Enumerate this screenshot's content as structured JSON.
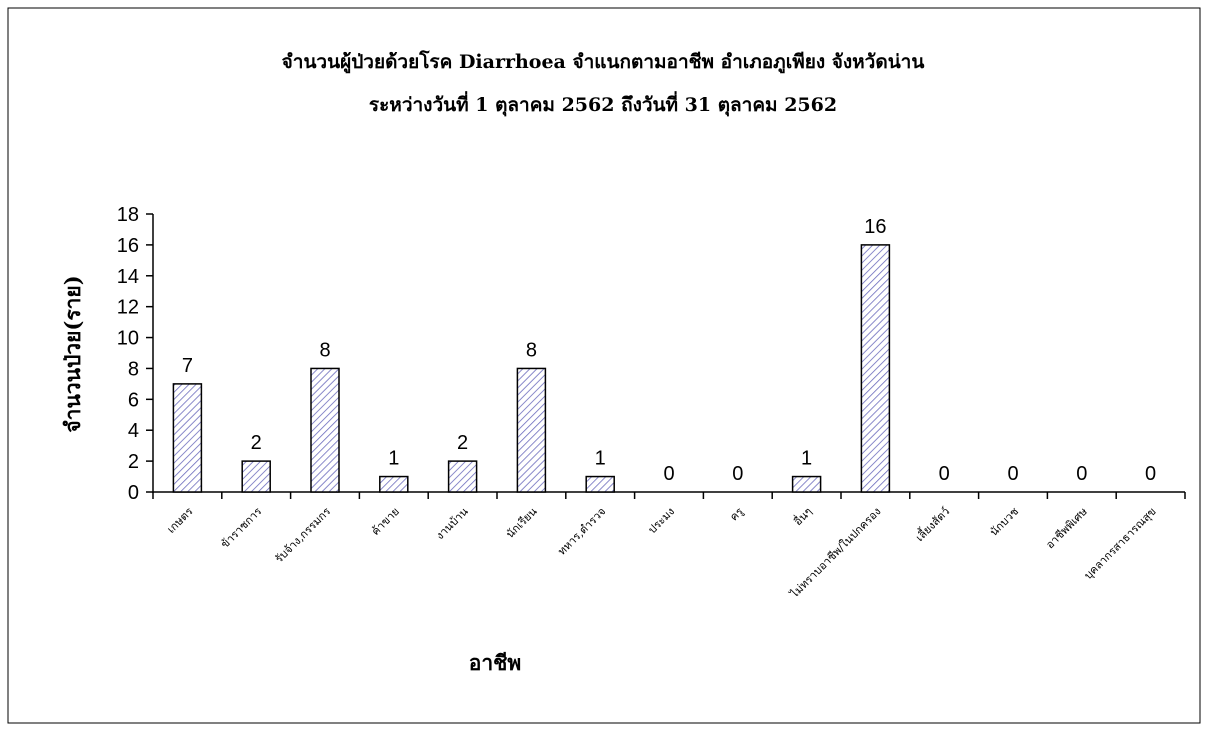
{
  "chart_data": {
    "type": "bar",
    "title": "จำนวนผู้ป่วยด้วยโรค Diarrhoea จำแนกตามอาชีพ    อำเภอภูเพียง จังหวัดน่าน",
    "subtitle": "ระหว่างวันที่  1 ตุลาคม 2562  ถึงวันที่  31 ตุลาคม 2562",
    "xlabel": "อาชีพ",
    "ylabel": "จำนวนป่วย(ราย)",
    "categories": [
      "เกษตร",
      "ข้าราชการ",
      "รับจ้าง,กรรมกร",
      "ค้าขาย",
      "งานบ้าน",
      "นักเรียน",
      "ทหาร,ตำรวจ",
      "ประมง",
      "ครู",
      "อื่นๆ",
      "ไม่ทราบอาชีพ/ในปกครอง",
      "เลี้ยงสัตว์",
      "นักบวช",
      "อาชีพพิเศษ",
      "บุคลากรสาธารณสุข"
    ],
    "values": [
      7,
      2,
      8,
      1,
      2,
      8,
      1,
      0,
      0,
      1,
      16,
      0,
      0,
      0,
      0
    ],
    "ylim": [
      0,
      18
    ],
    "yticks": [
      0,
      2,
      4,
      6,
      8,
      10,
      12,
      14,
      16,
      18
    ],
    "grid": false,
    "legend": "none",
    "bar_fill": "#ffffff",
    "bar_hatch_color": "#6b6bbd",
    "bar_stroke": "#000000"
  }
}
